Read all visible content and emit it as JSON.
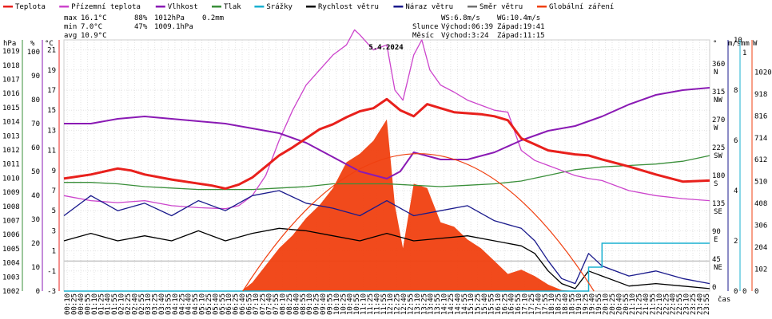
{
  "chart_data": {
    "type": "line",
    "title": "5.4.2024",
    "xlabel": "čas",
    "legend": [
      {
        "name": "Teplota",
        "color": "#e8201c"
      },
      {
        "name": "Přízemní teplota",
        "color": "#cc44cc"
      },
      {
        "name": "Vlhkost",
        "color": "#8a1ab4"
      },
      {
        "name": "Tlak",
        "color": "#3a8f3a"
      },
      {
        "name": "Srážky",
        "color": "#1ab0d0"
      },
      {
        "name": "Rychlost větru",
        "color": "#000000"
      },
      {
        "name": "Náraz větru",
        "color": "#1a1a8c"
      },
      {
        "name": "Směr větru",
        "color": "#707070"
      },
      {
        "name": "Globální záření",
        "color": "#f04010"
      }
    ],
    "stats": {
      "max": {
        "label": "max",
        "temp": "16.1°C",
        "hum": "88%",
        "press": "1012hPa",
        "rain": "0.2mm"
      },
      "min": {
        "label": "min",
        "temp": "7.0°C",
        "hum": "47%",
        "press": "1009.1hPa"
      },
      "avg": {
        "label": "avg",
        "temp": "10.9°C"
      }
    },
    "info": {
      "ws": "WS:6.8m/s",
      "wg": "WG:10.4m/s",
      "sun": "Slunce",
      "sun_rise": "Východ:06:39",
      "sun_set": "Západ:19:41",
      "moon": "Měsíc",
      "moon_rise": "Východ:3:24",
      "moon_set": "Západ:11:15"
    },
    "axes": {
      "press": {
        "unit": "hPa",
        "ticks": [
          "1019",
          "1018",
          "1017",
          "1016",
          "1015",
          "1014",
          "1013",
          "1012",
          "1011",
          "1010",
          "1009",
          "1008",
          "1007",
          "1006",
          "1005",
          "1004",
          "1003",
          "1002"
        ],
        "range": [
          1002,
          1019.8
        ]
      },
      "hum": {
        "unit": "%",
        "ticks": [
          "100",
          "90",
          "80",
          "70",
          "60",
          "50",
          "40",
          "30",
          "20",
          "10",
          "0"
        ],
        "range": [
          0,
          105
        ]
      },
      "temp": {
        "unit": "°C",
        "ticks": [
          "21",
          "19",
          "17",
          "15",
          "13",
          "11",
          "9",
          "7",
          "5",
          "3",
          "1",
          "-1",
          "-3"
        ],
        "range": [
          -3,
          22
        ]
      },
      "dir": {
        "unit": "°",
        "ticks": [
          "360",
          "315",
          "270",
          "225",
          "180",
          "135",
          "90",
          "45",
          "0"
        ],
        "labels": [
          "N",
          "NW",
          "W",
          "SW",
          "S",
          "SE",
          "E",
          "NE",
          ""
        ],
        "range": [
          0,
          405
        ]
      },
      "wind": {
        "unit": "m/s",
        "ticks": [
          "10",
          "8",
          "6",
          "4",
          "2",
          "0"
        ],
        "range": [
          0,
          10
        ]
      },
      "rain": {
        "unit": "mm",
        "ticks": [
          "1",
          "0"
        ],
        "range": [
          0,
          1
        ]
      },
      "rad": {
        "unit": "W",
        "ticks": [
          "1020",
          "918",
          "816",
          "714",
          "612",
          "510",
          "408",
          "306",
          "204",
          "102",
          "0"
        ],
        "range": [
          0,
          1020
        ]
      }
    },
    "x_ticks": [
      "00:10",
      "00:25",
      "00:40",
      "00:55",
      "01:10",
      "01:25",
      "01:40",
      "01:55",
      "02:10",
      "02:25",
      "02:40",
      "02:55",
      "03:10",
      "03:25",
      "03:40",
      "03:55",
      "04:10",
      "04:25",
      "04:40",
      "04:55",
      "05:10",
      "05:25",
      "05:40",
      "05:55",
      "06:10",
      "06:25",
      "06:40",
      "06:55",
      "07:10",
      "07:25",
      "07:40",
      "07:55",
      "08:10",
      "08:25",
      "08:40",
      "08:55",
      "09:10",
      "09:25",
      "09:40",
      "09:55",
      "10:10",
      "10:25",
      "10:40",
      "10:55",
      "11:10",
      "11:25",
      "11:40",
      "11:55",
      "12:10",
      "12:25",
      "12:40",
      "12:55",
      "13:10",
      "13:25",
      "13:40",
      "13:55",
      "14:10",
      "14:25",
      "14:40",
      "14:55",
      "15:10",
      "15:25",
      "15:40",
      "15:55",
      "16:10",
      "16:25",
      "16:40",
      "16:55",
      "17:10",
      "17:25",
      "17:40",
      "17:55",
      "18:10",
      "18:25",
      "18:40",
      "18:55",
      "19:10",
      "19:25",
      "19:40",
      "19:55",
      "20:10",
      "20:25",
      "20:40",
      "20:55",
      "21:10",
      "21:25",
      "21:40",
      "21:55",
      "22:10",
      "22:25",
      "22:40",
      "22:55",
      "23:10",
      "23:25",
      "23:40",
      "23:55"
    ],
    "series": [
      {
        "name": "Teplota",
        "unit": "°C",
        "color": "#e8201c",
        "x": [
          0,
          1,
          2,
          2.5,
          3,
          4,
          5,
          5.5,
          6,
          6.5,
          7,
          7.5,
          8,
          8.5,
          9,
          9.5,
          10,
          10.5,
          11,
          11.5,
          12,
          12.5,
          13,
          13.5,
          14,
          14.5,
          15,
          15.5,
          16,
          16.5,
          17,
          17.5,
          18,
          18.5,
          19,
          19.5,
          20,
          21,
          22,
          23,
          24
        ],
        "y": [
          8.2,
          8.6,
          9.2,
          9.0,
          8.6,
          8.1,
          7.7,
          7.5,
          7.2,
          7.6,
          8.3,
          9.4,
          10.5,
          11.3,
          12.2,
          13.1,
          13.6,
          14.3,
          14.9,
          15.2,
          16.1,
          15.0,
          14.4,
          15.6,
          15.2,
          14.8,
          14.7,
          14.6,
          14.4,
          14.0,
          12.2,
          11.6,
          11.0,
          10.8,
          10.6,
          10.5,
          10.1,
          9.4,
          8.6,
          7.9,
          8.0
        ]
      },
      {
        "name": "Přízemní teplota",
        "unit": "°C",
        "color": "#cc44cc",
        "x": [
          0,
          1,
          2,
          3,
          4,
          5,
          6,
          6.5,
          7,
          7.5,
          8,
          8.5,
          9,
          9.5,
          10,
          10.5,
          10.8,
          11,
          11.5,
          12,
          12.3,
          12.6,
          13,
          13.3,
          13.6,
          14,
          14.5,
          15,
          15.5,
          16,
          16.5,
          17,
          17.5,
          18,
          18.5,
          19,
          19.5,
          20,
          21,
          22,
          23,
          24
        ],
        "y": [
          6.5,
          6.0,
          5.8,
          6.0,
          5.5,
          5.3,
          5.2,
          5.5,
          6.5,
          8.5,
          12.0,
          15.0,
          17.5,
          19.0,
          20.5,
          21.5,
          23.0,
          22.5,
          21.0,
          21.5,
          17.0,
          16.0,
          20.5,
          22.0,
          19.0,
          17.5,
          16.8,
          16.0,
          15.5,
          15.0,
          14.8,
          11.0,
          10.0,
          9.5,
          9.0,
          8.5,
          8.2,
          8.0,
          7.0,
          6.5,
          6.2,
          6.0
        ]
      },
      {
        "name": "Vlhkost",
        "unit": "%",
        "color": "#8a1ab4",
        "x": [
          0,
          1,
          2,
          3,
          4,
          5,
          6,
          7,
          8,
          9,
          10,
          11,
          12,
          12.5,
          13,
          14,
          15,
          16,
          17,
          17.5,
          18,
          19,
          20,
          21,
          22,
          23,
          24
        ],
        "y": [
          70,
          70,
          72,
          73,
          72,
          71,
          70,
          68,
          66,
          62,
          56,
          50,
          47,
          50,
          58,
          55,
          55,
          58,
          63,
          65,
          67,
          69,
          73,
          78,
          82,
          84,
          85
        ]
      },
      {
        "name": "Tlak",
        "unit": "hPa",
        "color": "#3a8f3a",
        "x": [
          0,
          1,
          2,
          3,
          4,
          5,
          6,
          7,
          8,
          9,
          10,
          11,
          12,
          13,
          14,
          15,
          16,
          17,
          17.5,
          18,
          18.5,
          19,
          20,
          21,
          22,
          23,
          24
        ],
        "y": [
          1009.7,
          1009.7,
          1009.6,
          1009.4,
          1009.3,
          1009.2,
          1009.2,
          1009.2,
          1009.3,
          1009.4,
          1009.6,
          1009.6,
          1009.6,
          1009.5,
          1009.4,
          1009.5,
          1009.6,
          1009.8,
          1010.0,
          1010.2,
          1010.4,
          1010.6,
          1010.8,
          1010.9,
          1011.0,
          1011.2,
          1011.6
        ]
      },
      {
        "name": "Srážky",
        "unit": "mm",
        "color": "#1ab0d0",
        "x": [
          0,
          19.5,
          19.5,
          20,
          20,
          24
        ],
        "y": [
          0,
          0,
          0.1,
          0.1,
          0.2,
          0.2
        ]
      },
      {
        "name": "Rychlost větru",
        "unit": "m/s",
        "color": "#000000",
        "x": [
          0,
          1,
          2,
          3,
          4,
          5,
          6,
          7,
          8,
          9,
          10,
          11,
          12,
          13,
          14,
          15,
          16,
          17,
          17.5,
          18,
          18.5,
          19,
          19.5,
          20,
          21,
          22,
          23,
          24
        ],
        "y": [
          2.0,
          2.3,
          2.0,
          2.2,
          2.0,
          2.4,
          2.0,
          2.3,
          2.5,
          2.4,
          2.2,
          2.0,
          2.3,
          2.0,
          2.1,
          2.2,
          2.0,
          1.8,
          1.5,
          0.8,
          0.3,
          0.1,
          0.8,
          0.6,
          0.2,
          0.3,
          0.2,
          0.1
        ]
      },
      {
        "name": "Náraz větru",
        "unit": "m/s",
        "color": "#1a1a8c",
        "x": [
          0,
          1,
          2,
          3,
          4,
          5,
          6,
          7,
          8,
          9,
          10,
          11,
          12,
          13,
          14,
          15,
          16,
          17,
          17.5,
          18,
          18.5,
          19,
          19.5,
          20,
          21,
          22,
          23,
          24
        ],
        "y": [
          3.0,
          3.8,
          3.2,
          3.5,
          3.0,
          3.6,
          3.2,
          3.8,
          4.0,
          3.5,
          3.3,
          3.0,
          3.6,
          3.0,
          3.2,
          3.4,
          2.8,
          2.5,
          2.0,
          1.2,
          0.5,
          0.3,
          1.5,
          1.0,
          0.6,
          0.8,
          0.5,
          0.3
        ]
      },
      {
        "name": "Globální záření",
        "unit": "W",
        "color": "#f04010",
        "x": [
          0,
          6.6,
          7,
          7.5,
          8,
          8.5,
          9,
          9.5,
          10,
          10.5,
          11,
          11.5,
          12,
          12.3,
          12.6,
          13,
          13.5,
          14,
          14.5,
          15,
          15.5,
          16,
          16.5,
          17,
          17.5,
          18,
          18.5,
          19,
          24
        ],
        "y": [
          0,
          0,
          40,
          120,
          200,
          260,
          340,
          400,
          480,
          600,
          640,
          700,
          800,
          400,
          200,
          500,
          480,
          320,
          300,
          240,
          200,
          140,
          80,
          100,
          70,
          30,
          5,
          0,
          0
        ]
      }
    ]
  }
}
